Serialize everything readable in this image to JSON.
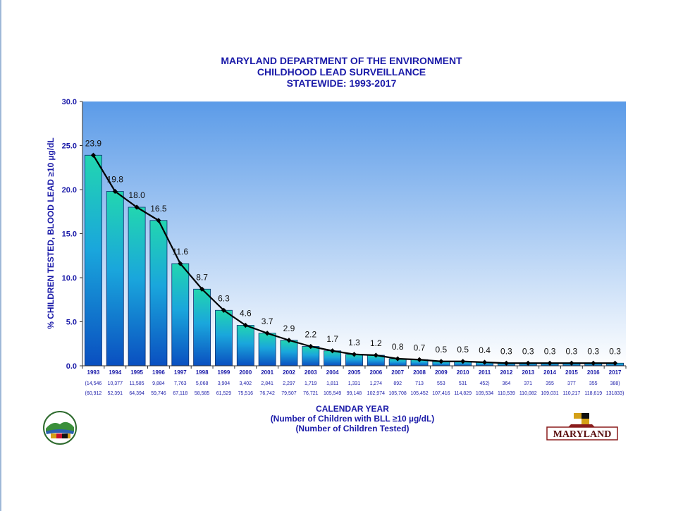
{
  "title_lines": [
    "MARYLAND DEPARTMENT OF THE ENVIRONMENT",
    "CHILDHOOD LEAD SURVEILLANCE",
    "STATEWIDE: 1993-2017"
  ],
  "x_axis_title_lines": [
    "CALENDAR YEAR",
    "(Number of Children with BLL ≥10 µg/dL)",
    "(Number of Children Tested)"
  ],
  "y_axis_title": "% CHILDREN TESTED, BLOOD LEAD ≥10 µg/dL",
  "logo_text": "MARYLAND",
  "colors": {
    "title": "#1a1aa8",
    "plot_top": "#5b9be8",
    "plot_bottom": "#ffffff",
    "bar_top": "#22d6b0",
    "bar_bottom": "#0a4fc0",
    "line": "#000000"
  },
  "chart_data": {
    "type": "bar",
    "categories": [
      "1993",
      "1994",
      "1995",
      "1996",
      "1997",
      "1998",
      "1999",
      "2000",
      "2001",
      "2002",
      "2003",
      "2004",
      "2005",
      "2006",
      "2007",
      "2008",
      "2009",
      "2010",
      "2011",
      "2012",
      "2013",
      "2014",
      "2015",
      "2016",
      "2017"
    ],
    "values": [
      23.9,
      19.8,
      18.0,
      16.5,
      11.6,
      8.7,
      6.3,
      4.6,
      3.7,
      2.9,
      2.2,
      1.7,
      1.3,
      1.2,
      0.8,
      0.7,
      0.5,
      0.5,
      0.4,
      0.3,
      0.3,
      0.3,
      0.3,
      0.3,
      0.3
    ],
    "data_labels": [
      "23.9",
      "19.8",
      "18.0",
      "16.5",
      "11.6",
      "8.7",
      "6.3",
      "4.6",
      "3.7",
      "2.9",
      "2.2",
      "1.7",
      "1.3",
      "1.2",
      "0.8",
      "0.7",
      "0.5",
      "0.5",
      "0.4",
      "0.3",
      "0.3",
      "0.3",
      "0.3",
      "0.3",
      "0.3"
    ],
    "overlay_line": true,
    "ylim": [
      0,
      30
    ],
    "y_ticks": [
      "0.0",
      "5.0",
      "10.0",
      "15.0",
      "20.0",
      "25.0",
      "30.0"
    ],
    "children_bll10_labels": [
      "(14,546",
      "10,377",
      "11,585",
      "9,884",
      "7,763",
      "5,068",
      "3,904",
      "3,402",
      "2,841",
      "2,297",
      "1,719",
      "1,811",
      "1,331",
      "1,274",
      "892",
      "713",
      "553",
      "531",
      "452)",
      "364",
      "371",
      "355",
      "377",
      "355",
      "388)"
    ],
    "children_tested_labels": [
      "(60,912",
      "52,391",
      "64,394",
      "59,746",
      "67,118",
      "58,585",
      "61,529",
      "75,516",
      "76,742",
      "79,507",
      "76,721",
      "105,549",
      "99,148",
      "102,974",
      "105,708",
      "105,452",
      "107,416",
      "114,829",
      "109,534",
      "110,539",
      "110,082",
      "109,031",
      "110,217",
      "118,619",
      "131833)"
    ],
    "grid": false,
    "legend": "none"
  }
}
